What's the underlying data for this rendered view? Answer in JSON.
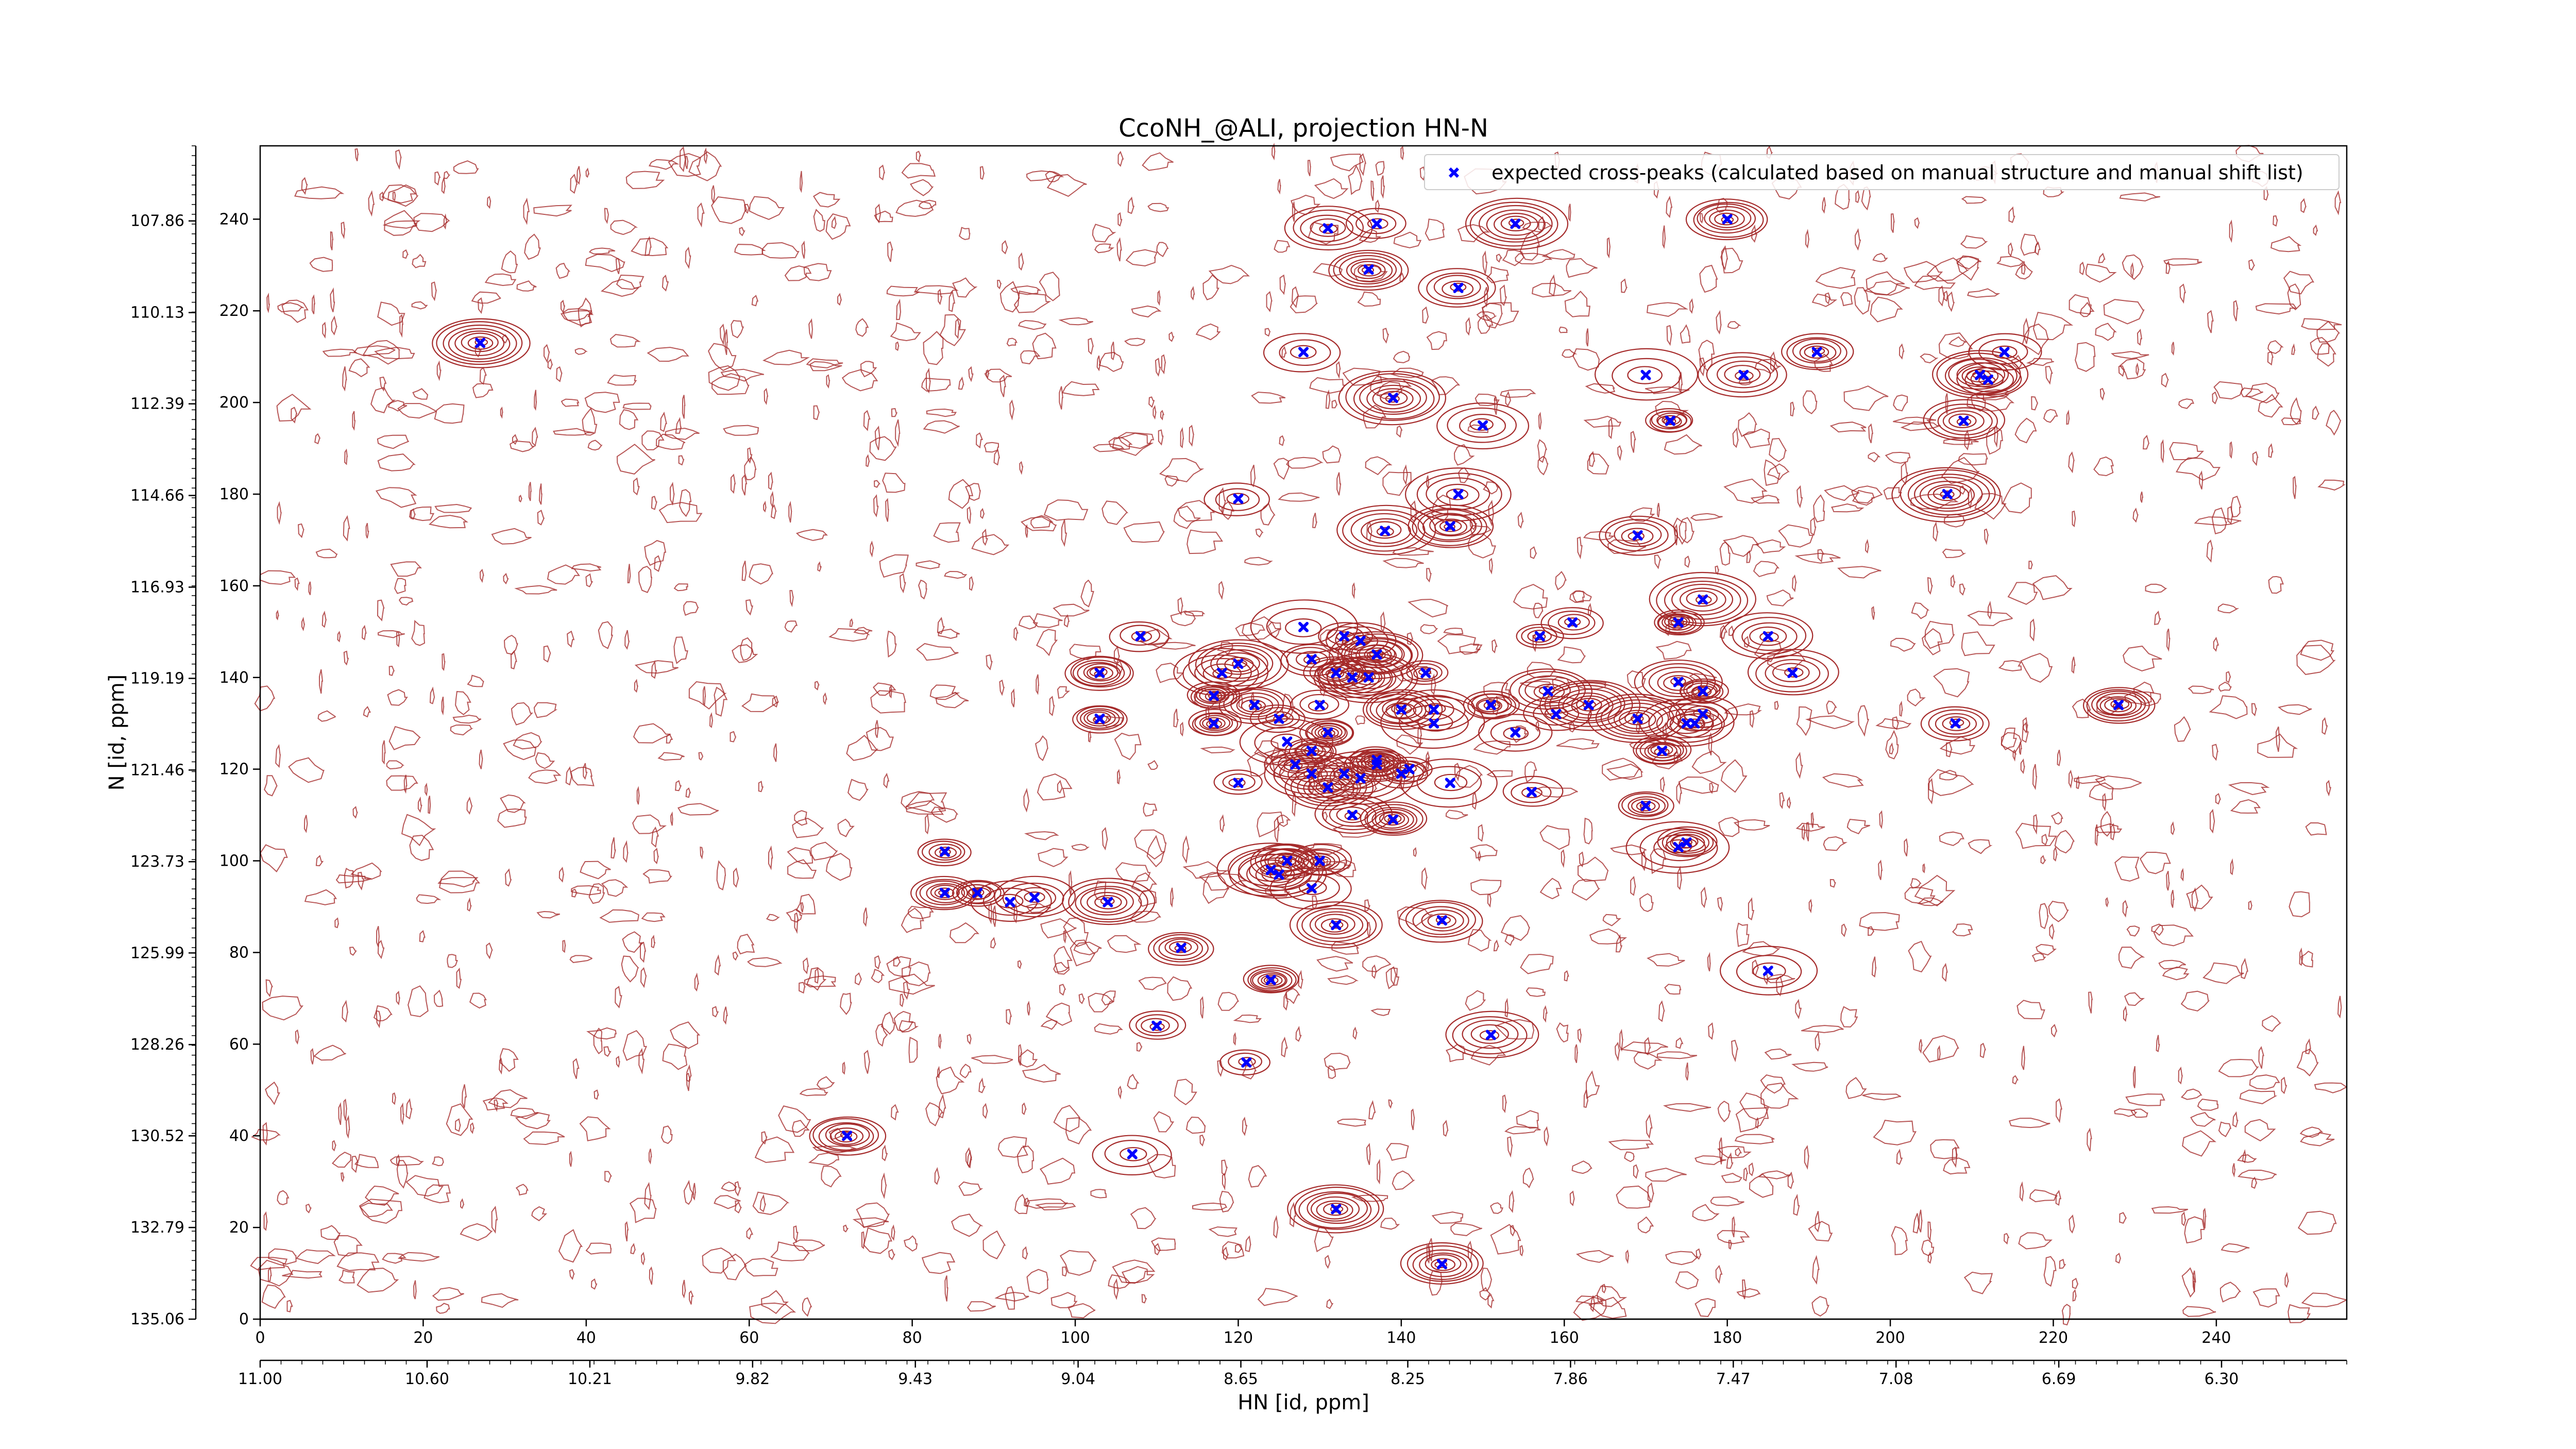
{
  "chart_data": {
    "type": "scatter",
    "title": "CcoNH_@ALI, projection HN-N",
    "xlabel": "HN [id, ppm]",
    "ylabel": "N [id, ppm]",
    "x_index_range": [
      0,
      256
    ],
    "y_index_range": [
      0,
      256
    ],
    "x_index_ticks": [
      "0",
      "20",
      "40",
      "60",
      "80",
      "100",
      "120",
      "140",
      "160",
      "180",
      "200",
      "220",
      "240"
    ],
    "y_index_ticks": [
      "0",
      "20",
      "40",
      "60",
      "80",
      "100",
      "120",
      "140",
      "160",
      "180",
      "200",
      "220",
      "240"
    ],
    "x_ppm_ticks": [
      "11.00",
      "10.60",
      "10.21",
      "9.82",
      "9.43",
      "9.04",
      "8.65",
      "8.25",
      "7.86",
      "7.47",
      "7.08",
      "6.69",
      "6.30"
    ],
    "y_ppm_ticks": [
      "135.06",
      "132.79",
      "130.52",
      "128.26",
      "125.99",
      "123.73",
      "121.46",
      "119.19",
      "116.93",
      "114.66",
      "112.39",
      "110.13",
      "107.86"
    ],
    "x_ppm_range": [
      11.0,
      6.0
    ],
    "y_ppm_range": [
      135.06,
      106.0
    ],
    "legend_position": "upper-right",
    "series": [
      {
        "name": "expected cross-peaks (calculated based on manual structure and manual shift list)",
        "color": "#0000ff",
        "marker": "x",
        "points": [
          [
            27,
            213
          ],
          [
            131,
            238
          ],
          [
            137,
            239
          ],
          [
            136,
            229
          ],
          [
            147,
            225
          ],
          [
            154,
            239
          ],
          [
            180,
            240
          ],
          [
            128,
            211
          ],
          [
            139,
            201
          ],
          [
            150,
            195
          ],
          [
            170,
            206
          ],
          [
            173,
            196
          ],
          [
            182,
            206
          ],
          [
            191,
            211
          ],
          [
            211,
            206
          ],
          [
            212,
            205
          ],
          [
            214,
            211
          ],
          [
            209,
            196
          ],
          [
            120,
            179
          ],
          [
            207,
            180
          ],
          [
            138,
            172
          ],
          [
            147,
            180
          ],
          [
            146,
            173
          ],
          [
            169,
            171
          ],
          [
            108,
            149
          ],
          [
            128,
            151
          ],
          [
            161,
            152
          ],
          [
            157,
            149
          ],
          [
            174,
            152
          ],
          [
            177,
            157
          ],
          [
            185,
            149
          ],
          [
            188,
            141
          ],
          [
            103,
            141
          ],
          [
            103,
            131
          ],
          [
            118,
            141
          ],
          [
            120,
            143
          ],
          [
            129,
            144
          ],
          [
            133,
            149
          ],
          [
            135,
            148
          ],
          [
            137,
            145
          ],
          [
            134,
            140
          ],
          [
            132,
            141
          ],
          [
            136,
            140
          ],
          [
            143,
            141
          ],
          [
            117,
            136
          ],
          [
            122,
            134
          ],
          [
            125,
            131
          ],
          [
            130,
            134
          ],
          [
            137,
            145
          ],
          [
            140,
            133
          ],
          [
            144,
            133
          ],
          [
            144,
            130
          ],
          [
            151,
            134
          ],
          [
            154,
            128
          ],
          [
            158,
            137
          ],
          [
            159,
            132
          ],
          [
            163,
            134
          ],
          [
            169,
            131
          ],
          [
            174,
            139
          ],
          [
            175,
            130
          ],
          [
            176,
            130
          ],
          [
            177,
            137
          ],
          [
            117,
            130
          ],
          [
            208,
            130
          ],
          [
            228,
            134
          ],
          [
            131,
            128
          ],
          [
            137,
            122
          ],
          [
            129,
            124
          ],
          [
            127,
            121
          ],
          [
            131,
            116
          ],
          [
            133,
            119
          ],
          [
            135,
            118
          ],
          [
            137,
            121
          ],
          [
            140,
            119
          ],
          [
            141,
            120
          ],
          [
            146,
            117
          ],
          [
            156,
            115
          ],
          [
            120,
            117
          ],
          [
            126,
            126
          ],
          [
            129,
            119
          ],
          [
            134,
            110
          ],
          [
            139,
            109
          ],
          [
            170,
            112
          ],
          [
            172,
            124
          ],
          [
            177,
            132
          ],
          [
            175,
            104
          ],
          [
            174,
            103
          ],
          [
            84,
            102
          ],
          [
            84,
            93
          ],
          [
            88,
            93
          ],
          [
            92,
            91
          ],
          [
            95,
            92
          ],
          [
            104,
            91
          ],
          [
            113,
            81
          ],
          [
            124,
            98
          ],
          [
            125,
            97
          ],
          [
            129,
            94
          ],
          [
            130,
            100
          ],
          [
            126,
            100
          ],
          [
            132,
            86
          ],
          [
            145,
            87
          ],
          [
            124,
            74
          ],
          [
            110,
            64
          ],
          [
            151,
            62
          ],
          [
            121,
            56
          ],
          [
            185,
            76
          ],
          [
            72,
            40
          ],
          [
            107,
            36
          ],
          [
            132,
            24
          ],
          [
            145,
            12
          ]
        ]
      }
    ],
    "colors": {
      "contours": "#a52a2a",
      "markers": "#0000ff"
    }
  }
}
